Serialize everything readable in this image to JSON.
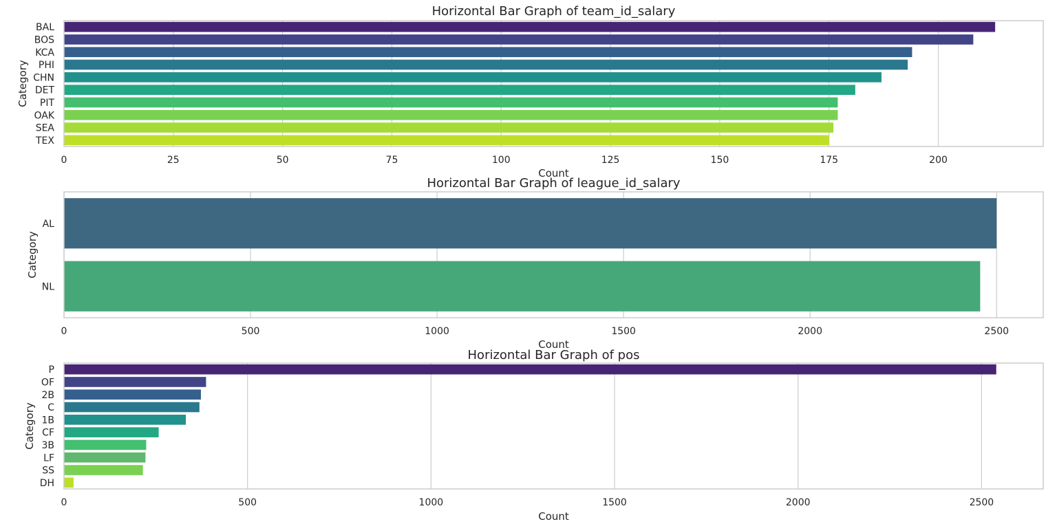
{
  "chart_data": [
    {
      "type": "bar",
      "orientation": "horizontal",
      "title": "Horizontal Bar Graph of team_id_salary",
      "xlabel": "Count",
      "ylabel": "Category",
      "categories": [
        "BAL",
        "BOS",
        "KCA",
        "PHI",
        "CHN",
        "DET",
        "PIT",
        "OAK",
        "SEA",
        "TEX"
      ],
      "values": [
        213,
        208,
        194,
        193,
        187,
        181,
        177,
        177,
        176,
        175
      ],
      "colors": [
        "#482475",
        "#414487",
        "#355f8d",
        "#2a788e",
        "#21918c",
        "#22a884",
        "#44bf70",
        "#7ad151",
        "#a5db36",
        "#bddf26"
      ],
      "xlim": [
        0,
        224
      ],
      "xticks": [
        0,
        25,
        50,
        75,
        100,
        125,
        150,
        175,
        200
      ],
      "grid": true
    },
    {
      "type": "bar",
      "orientation": "horizontal",
      "title": "Horizontal Bar Graph of league_id_salary",
      "xlabel": "Count",
      "ylabel": "Category",
      "categories": [
        "AL",
        "NL"
      ],
      "values": [
        2500,
        2456
      ],
      "colors": [
        "#3e6782",
        "#46a879"
      ],
      "xlim": [
        0,
        2625
      ],
      "xticks": [
        0,
        500,
        1000,
        1500,
        2000,
        2500
      ],
      "grid": true
    },
    {
      "type": "bar",
      "orientation": "horizontal",
      "title": "Horizontal Bar Graph of pos",
      "xlabel": "Count",
      "ylabel": "Category",
      "categories": [
        "P",
        "OF",
        "2B",
        "C",
        "1B",
        "CF",
        "3B",
        "LF",
        "SS",
        "DH"
      ],
      "values": [
        2540,
        387,
        373,
        369,
        332,
        258,
        224,
        222,
        215,
        26
      ],
      "colors": [
        "#482475",
        "#414487",
        "#355f8d",
        "#2a788e",
        "#21918c",
        "#22a884",
        "#44bf70",
        "#5fb86d",
        "#7ad151",
        "#bddf26"
      ],
      "xlim": [
        0,
        2668
      ],
      "xticks": [
        0,
        500,
        1000,
        1500,
        2000,
        2500
      ],
      "grid": true
    }
  ]
}
